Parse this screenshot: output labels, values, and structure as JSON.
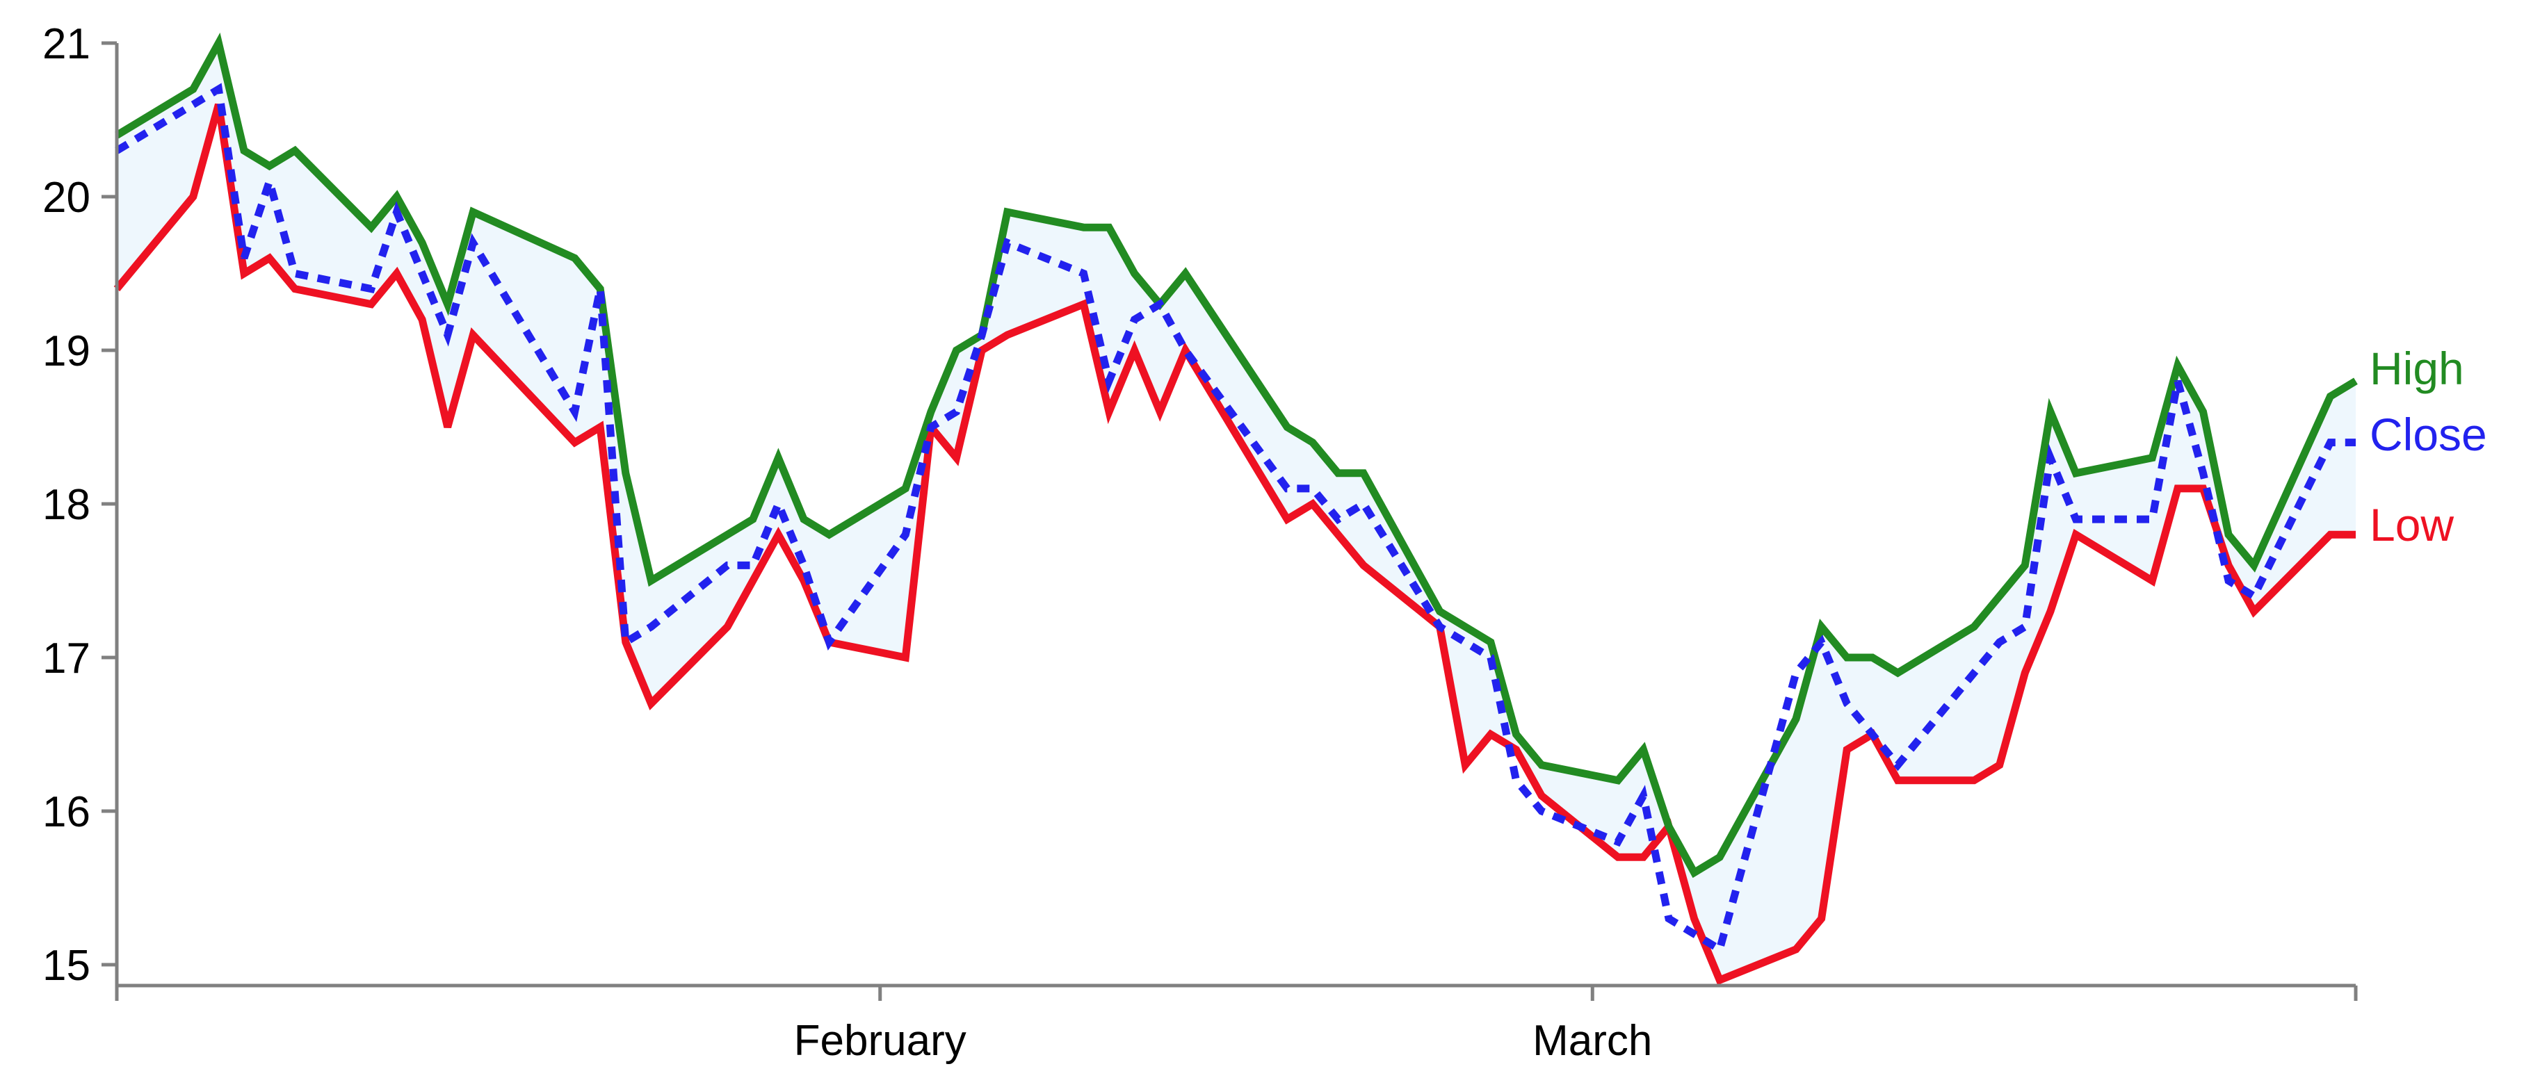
{
  "chart_data": {
    "type": "line",
    "ylim": [
      14.9,
      21.0
    ],
    "yticks": [
      "15",
      "16",
      "17",
      "18",
      "19",
      "20",
      "21"
    ],
    "x_ticks": [
      {
        "label": "February",
        "date": "2009-02-01"
      },
      {
        "label": "March",
        "date": "2009-03-01"
      }
    ],
    "dates": [
      "2009-01-02",
      "2009-01-05",
      "2009-01-06",
      "2009-01-07",
      "2009-01-08",
      "2009-01-09",
      "2009-01-12",
      "2009-01-13",
      "2009-01-14",
      "2009-01-15",
      "2009-01-16",
      "2009-01-20",
      "2009-01-21",
      "2009-01-22",
      "2009-01-23",
      "2009-01-26",
      "2009-01-27",
      "2009-01-28",
      "2009-01-29",
      "2009-01-30",
      "2009-02-02",
      "2009-02-03",
      "2009-02-04",
      "2009-02-05",
      "2009-02-06",
      "2009-02-09",
      "2009-02-10",
      "2009-02-11",
      "2009-02-12",
      "2009-02-13",
      "2009-02-17",
      "2009-02-18",
      "2009-02-19",
      "2009-02-20",
      "2009-02-23",
      "2009-02-24",
      "2009-02-25",
      "2009-02-26",
      "2009-02-27",
      "2009-03-02",
      "2009-03-03",
      "2009-03-04",
      "2009-03-05",
      "2009-03-06",
      "2009-03-09",
      "2009-03-10",
      "2009-03-11",
      "2009-03-12",
      "2009-03-13",
      "2009-03-16",
      "2009-03-17",
      "2009-03-18",
      "2009-03-19",
      "2009-03-20",
      "2009-03-23",
      "2009-03-24",
      "2009-03-25",
      "2009-03-26",
      "2009-03-27",
      "2009-03-30",
      "2009-03-31"
    ],
    "series": [
      {
        "name": "High",
        "color": "#228b22",
        "dash": "solid",
        "values": [
          20.4,
          20.7,
          21.0,
          20.3,
          20.2,
          20.3,
          19.8,
          20.0,
          19.7,
          19.3,
          19.9,
          19.6,
          19.4,
          18.2,
          17.5,
          17.8,
          17.9,
          18.3,
          17.9,
          17.8,
          18.1,
          18.6,
          19.0,
          19.1,
          19.9,
          19.8,
          19.8,
          19.5,
          19.3,
          19.5,
          18.5,
          18.4,
          18.2,
          18.2,
          17.3,
          17.2,
          17.1,
          16.5,
          16.3,
          16.2,
          16.4,
          15.9,
          15.6,
          15.7,
          16.6,
          17.2,
          17.0,
          17.0,
          16.9,
          17.2,
          17.4,
          17.6,
          18.6,
          18.2,
          18.3,
          18.9,
          18.6,
          17.8,
          17.6,
          18.7,
          18.8
        ]
      },
      {
        "name": "Close",
        "color": "#2222ee",
        "dash": "dotted",
        "values": [
          20.3,
          20.6,
          20.7,
          19.6,
          20.1,
          19.5,
          19.4,
          19.9,
          19.5,
          19.1,
          19.7,
          18.6,
          19.4,
          17.1,
          17.2,
          17.6,
          17.6,
          18.0,
          17.6,
          17.1,
          17.8,
          18.5,
          18.6,
          19.1,
          19.7,
          19.5,
          18.8,
          19.2,
          19.3,
          19.0,
          18.1,
          18.1,
          17.9,
          18.0,
          17.2,
          17.1,
          17.0,
          16.2,
          16.0,
          15.8,
          16.1,
          15.3,
          15.2,
          15.1,
          16.9,
          17.1,
          16.7,
          16.5,
          16.3,
          16.9,
          17.1,
          17.2,
          18.3,
          17.9,
          17.9,
          18.8,
          18.2,
          17.5,
          17.4,
          18.4,
          18.4
        ]
      },
      {
        "name": "Low",
        "color": "#ee1122",
        "dash": "solid",
        "values": [
          19.4,
          20.0,
          20.6,
          19.5,
          19.6,
          19.4,
          19.3,
          19.5,
          19.2,
          18.5,
          19.1,
          18.4,
          18.5,
          17.1,
          16.7,
          17.2,
          17.5,
          17.8,
          17.5,
          17.1,
          17.0,
          18.5,
          18.3,
          19.0,
          19.1,
          19.3,
          18.6,
          19.0,
          18.6,
          19.0,
          17.9,
          18.0,
          17.8,
          17.6,
          17.2,
          16.3,
          16.5,
          16.4,
          16.1,
          15.7,
          15.7,
          15.9,
          15.3,
          14.9,
          15.1,
          15.3,
          16.4,
          16.5,
          16.2,
          16.2,
          16.3,
          16.9,
          17.3,
          17.8,
          17.5,
          18.1,
          18.1,
          17.6,
          17.3,
          17.8,
          17.8
        ]
      }
    ],
    "band": {
      "between": [
        "High",
        "Low"
      ],
      "color": "#eef7fd"
    },
    "legend_placement": "right-end-of-lines",
    "grid": false
  }
}
